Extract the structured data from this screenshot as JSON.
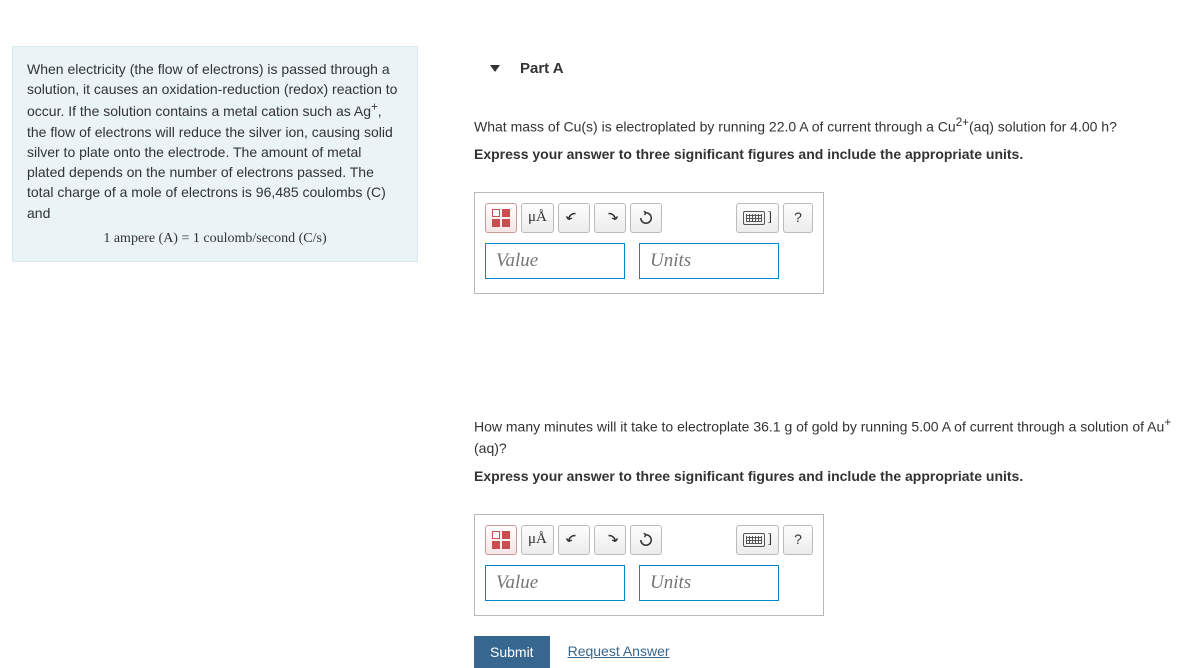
{
  "intro": {
    "text_html": "When electricity (the flow of electrons) is passed through a solution, it causes an oxidation-reduction (redox) reaction to occur. If the solution contains a metal cation such as Ag<sup>+</sup>, the flow of electrons will reduce the silver ion, causing solid silver to plate onto the electrode. The amount of metal plated depends on the number of electrons passed. The total charge of a mole of electrons is 96,485 coulombs (C) and",
    "equation": "1 ampere (A) = 1 coulomb/second (C/s)"
  },
  "part": {
    "label": "Part A"
  },
  "q1": {
    "prompt_html": "What mass of Cu(s) is electroplated by running 22.0 A of current through a Cu<sup>2+</sup>(aq) solution for 4.00 h?",
    "instruction": "Express your answer to three significant figures and include the appropriate units."
  },
  "q2": {
    "prompt_html": "How many minutes will it take to electroplate 36.1 g of gold by running 5.00 A of current through a solution of Au<sup>+</sup>(aq)?",
    "instruction": "Express your answer to three significant figures and include the appropriate units."
  },
  "answer_box": {
    "mu_a_label": "μÅ",
    "keyboard_bracket": "]",
    "help_label": "?",
    "value_placeholder": "Value",
    "units_placeholder": "Units"
  },
  "actions": {
    "submit": "Submit",
    "request_answer": "Request Answer"
  },
  "colors": {
    "intro_bg": "#eaf4f6",
    "link": "#37668e",
    "submit_bg": "#37668e",
    "input_border": "#0088cc"
  }
}
